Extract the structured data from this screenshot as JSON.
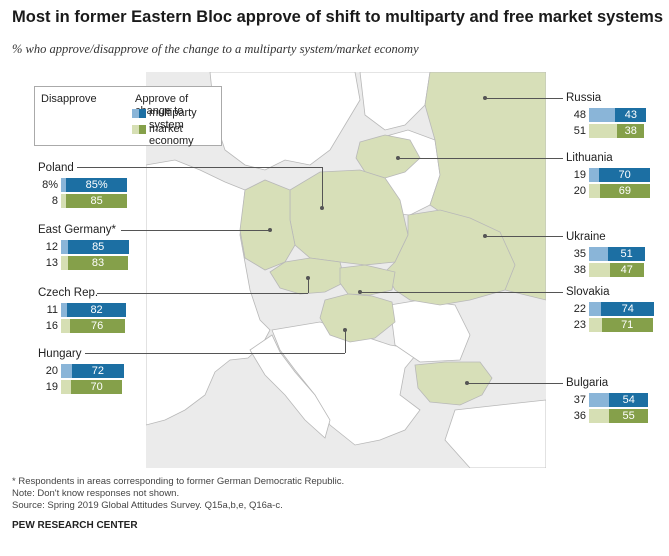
{
  "title": "Most in former Eastern Bloc approve of shift to multiparty and free market systems",
  "subtitle": "% who approve/disapprove of the change to a multiparty system/market economy",
  "legend": {
    "disapprove": "Disapprove",
    "approve": "Approve of change to",
    "multiparty": "multiparty system",
    "market": "market economy"
  },
  "colors": {
    "multiparty_approve": "#1c6fa3",
    "multiparty_disapprove": "#8ab5d8",
    "market_approve": "#85a04a",
    "market_disapprove": "#d6dfb4",
    "highlight_country": "#d7dfb8",
    "other_land": "#ffffff",
    "sea": "#ebebeb",
    "border": "#b8b8b8"
  },
  "countries": [
    {
      "name": "Russia",
      "multiparty": {
        "disapprove": "48",
        "approve": "43"
      },
      "market": {
        "disapprove": "51",
        "approve": "38"
      }
    },
    {
      "name": "Lithuania",
      "multiparty": {
        "disapprove": "19",
        "approve": "70"
      },
      "market": {
        "disapprove": "20",
        "approve": "69"
      }
    },
    {
      "name": "Poland",
      "multiparty": {
        "disapprove": "8%",
        "approve": "85%"
      },
      "market": {
        "disapprove": "8",
        "approve": "85"
      }
    },
    {
      "name": "East Germany*",
      "multiparty": {
        "disapprove": "12",
        "approve": "85"
      },
      "market": {
        "disapprove": "13",
        "approve": "83"
      }
    },
    {
      "name": "Ukraine",
      "multiparty": {
        "disapprove": "35",
        "approve": "51"
      },
      "market": {
        "disapprove": "38",
        "approve": "47"
      }
    },
    {
      "name": "Czech Rep.",
      "multiparty": {
        "disapprove": "11",
        "approve": "82"
      },
      "market": {
        "disapprove": "16",
        "approve": "76"
      }
    },
    {
      "name": "Slovakia",
      "multiparty": {
        "disapprove": "22",
        "approve": "74"
      },
      "market": {
        "disapprove": "23",
        "approve": "71"
      }
    },
    {
      "name": "Hungary",
      "multiparty": {
        "disapprove": "20",
        "approve": "72"
      },
      "market": {
        "disapprove": "19",
        "approve": "70"
      }
    },
    {
      "name": "Bulgaria",
      "multiparty": {
        "disapprove": "37",
        "approve": "54"
      },
      "market": {
        "disapprove": "36",
        "approve": "55"
      }
    }
  ],
  "notes": [
    "* Respondents in areas corresponding to former German Democratic Republic.",
    "Note: Don't know responses not shown.",
    "Source: Spring 2019 Global Attitudes Survey. Q15a,b,e, Q16a-c."
  ],
  "source_org": "PEW RESEARCH CENTER"
}
